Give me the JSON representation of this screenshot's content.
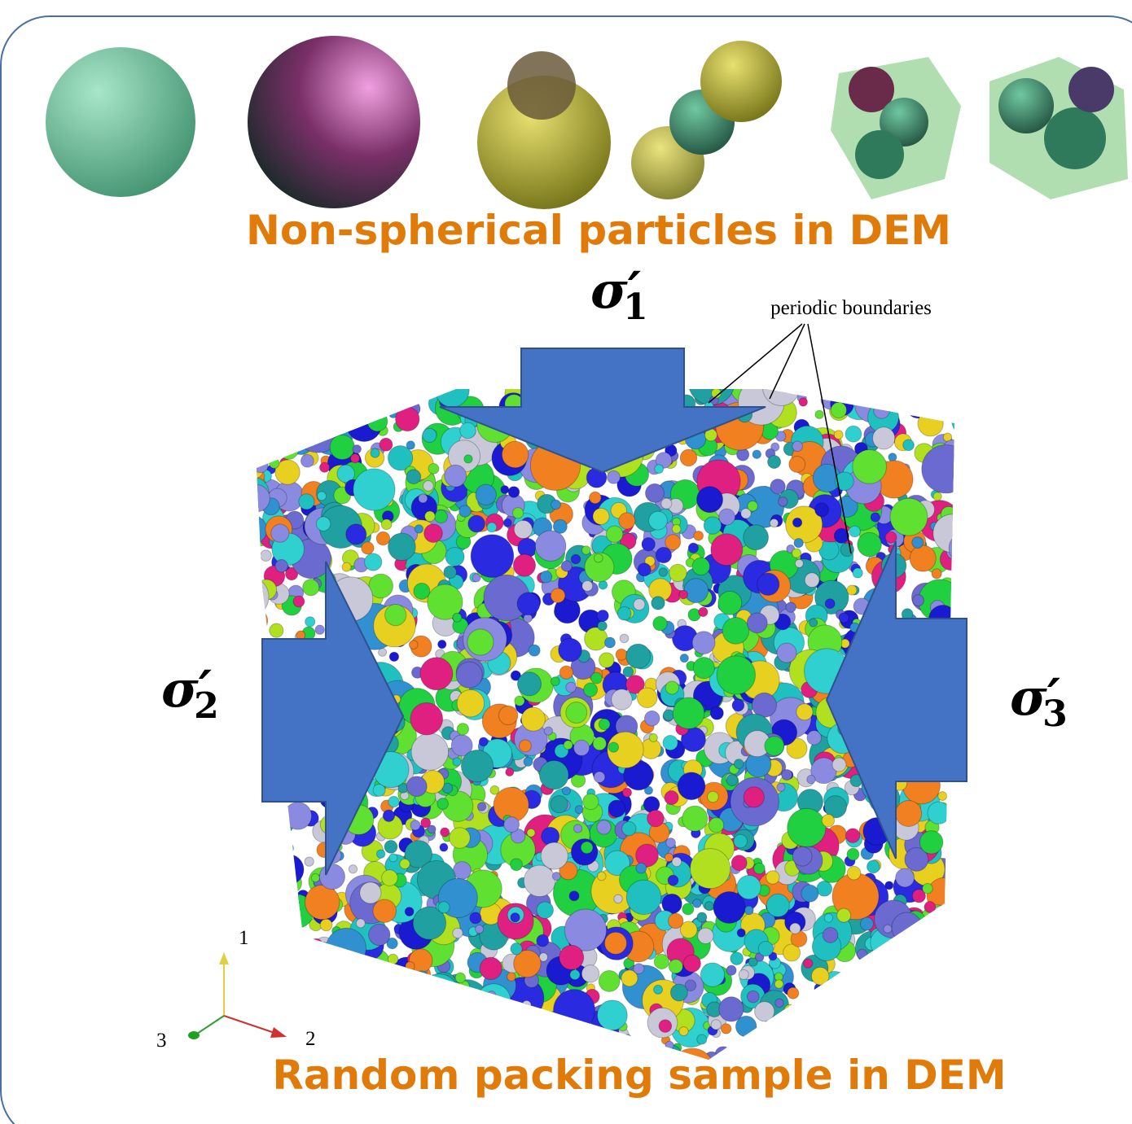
{
  "header": {
    "title": "Non-spherical particles in DEM"
  },
  "stresses": [
    {
      "symbol": "σ′",
      "subscript": "1"
    },
    {
      "symbol": "σ′",
      "subscript": "2"
    },
    {
      "symbol": "σ′",
      "subscript": "3"
    }
  ],
  "annotation": "periodic boundaries",
  "axes": [
    "1",
    "2",
    "3"
  ],
  "footer": {
    "title": "Random packing sample in DEM"
  }
}
